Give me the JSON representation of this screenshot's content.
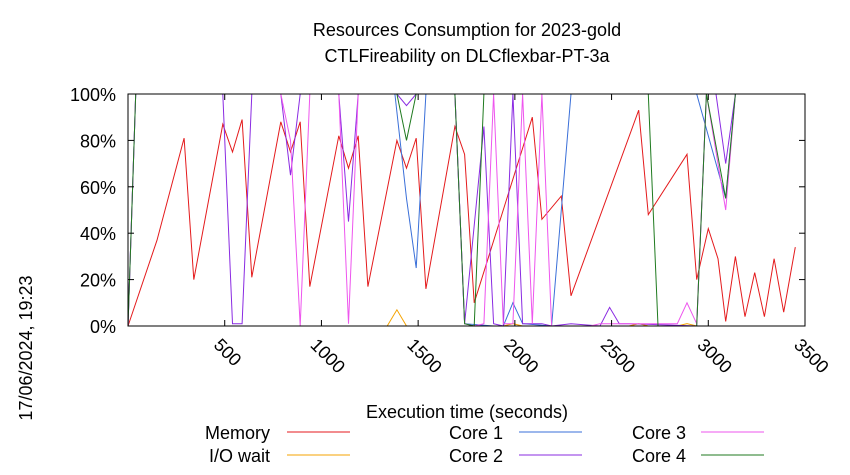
{
  "timestamp": "17/06/2024, 19:23",
  "chart_data": {
    "type": "line",
    "title": "Resources Consumption for 2023-gold",
    "subtitle": "CTLFireability on DLCflexbar-PT-3a",
    "xlabel": "Execution time (seconds)",
    "ylabel": "",
    "xlim": [
      0,
      3500
    ],
    "ylim": [
      0,
      100
    ],
    "grid": false,
    "legend_position": "bottom",
    "x_ticks": [
      {
        "value": 500,
        "label": "500"
      },
      {
        "value": 1000,
        "label": "1000"
      },
      {
        "value": 1500,
        "label": "1500"
      },
      {
        "value": 2000,
        "label": "2000"
      },
      {
        "value": 2500,
        "label": "2500"
      },
      {
        "value": 3000,
        "label": "3000"
      },
      {
        "value": 3500,
        "label": "3500"
      }
    ],
    "y_ticks": [
      {
        "value": 0,
        "label": "0%"
      },
      {
        "value": 20,
        "label": "20%"
      },
      {
        "value": 40,
        "label": "40%"
      },
      {
        "value": 60,
        "label": "60%"
      },
      {
        "value": 80,
        "label": "80%"
      },
      {
        "value": 100,
        "label": "100%"
      }
    ],
    "series": [
      {
        "name": "Memory",
        "color": "#e41a1c",
        "points": [
          [
            0,
            0
          ],
          [
            150,
            37
          ],
          [
            290,
            81
          ],
          [
            340,
            20
          ],
          [
            490,
            87
          ],
          [
            540,
            75
          ],
          [
            590,
            89
          ],
          [
            640,
            21
          ],
          [
            790,
            88
          ],
          [
            840,
            75
          ],
          [
            890,
            88
          ],
          [
            940,
            17
          ],
          [
            1090,
            82
          ],
          [
            1140,
            68
          ],
          [
            1190,
            82
          ],
          [
            1240,
            17
          ],
          [
            1390,
            80
          ],
          [
            1440,
            68
          ],
          [
            1490,
            81
          ],
          [
            1540,
            16
          ],
          [
            1690,
            86
          ],
          [
            1740,
            74
          ],
          [
            1790,
            10
          ],
          [
            2090,
            90
          ],
          [
            2140,
            46
          ],
          [
            2240,
            56
          ],
          [
            2290,
            13
          ],
          [
            2640,
            93
          ],
          [
            2690,
            48
          ],
          [
            2890,
            74
          ],
          [
            2940,
            20
          ],
          [
            3000,
            42
          ],
          [
            3050,
            29
          ],
          [
            3090,
            2
          ],
          [
            3140,
            30
          ],
          [
            3190,
            4
          ],
          [
            3240,
            23
          ],
          [
            3290,
            4
          ],
          [
            3340,
            29
          ],
          [
            3390,
            6
          ],
          [
            3450,
            34
          ]
        ]
      },
      {
        "name": "I/O wait",
        "color": "#f5a300",
        "points": [
          [
            0,
            0
          ],
          [
            1340,
            0
          ],
          [
            1390,
            7
          ],
          [
            1440,
            0
          ],
          [
            1940,
            0
          ],
          [
            1990,
            1
          ],
          [
            2040,
            0
          ],
          [
            2590,
            0
          ],
          [
            2640,
            1
          ],
          [
            2690,
            0
          ],
          [
            2840,
            0
          ],
          [
            2890,
            1
          ],
          [
            2940,
            0
          ],
          [
            3450,
            0
          ]
        ]
      },
      {
        "name": "Core 1",
        "color": "#3a6fd8",
        "points": [
          [
            0,
            0
          ],
          [
            40,
            100
          ],
          [
            1380,
            100
          ],
          [
            1440,
            55
          ],
          [
            1490,
            25
          ],
          [
            1540,
            100
          ],
          [
            1690,
            100
          ],
          [
            1740,
            1
          ],
          [
            1890,
            0
          ],
          [
            1940,
            0
          ],
          [
            1990,
            10
          ],
          [
            2040,
            1
          ],
          [
            2190,
            0
          ],
          [
            2290,
            100
          ],
          [
            2940,
            100
          ],
          [
            3090,
            55
          ],
          [
            3140,
            100
          ],
          [
            3450,
            100
          ]
        ]
      },
      {
        "name": "Core 2",
        "color": "#8a2be2",
        "points": [
          [
            0,
            0
          ],
          [
            40,
            100
          ],
          [
            490,
            100
          ],
          [
            540,
            1
          ],
          [
            590,
            1
          ],
          [
            640,
            100
          ],
          [
            790,
            100
          ],
          [
            840,
            65
          ],
          [
            890,
            100
          ],
          [
            1090,
            100
          ],
          [
            1140,
            45
          ],
          [
            1190,
            100
          ],
          [
            1390,
            100
          ],
          [
            1440,
            95
          ],
          [
            1490,
            100
          ],
          [
            1690,
            100
          ],
          [
            1740,
            1
          ],
          [
            1840,
            86
          ],
          [
            1890,
            1
          ],
          [
            1940,
            0
          ],
          [
            1990,
            100
          ],
          [
            2040,
            1
          ],
          [
            2140,
            1
          ],
          [
            2190,
            0
          ],
          [
            2290,
            1
          ],
          [
            2440,
            0
          ],
          [
            2490,
            8
          ],
          [
            2540,
            1
          ],
          [
            2590,
            1
          ],
          [
            2940,
            0
          ],
          [
            2990,
            100
          ],
          [
            3040,
            100
          ],
          [
            3090,
            70
          ],
          [
            3140,
            100
          ],
          [
            3450,
            100
          ]
        ]
      },
      {
        "name": "Core 3",
        "color": "#ee55ee",
        "points": [
          [
            0,
            0
          ],
          [
            40,
            100
          ],
          [
            490,
            100
          ],
          [
            540,
            100
          ],
          [
            590,
            100
          ],
          [
            640,
            100
          ],
          [
            790,
            100
          ],
          [
            840,
            80
          ],
          [
            890,
            0
          ],
          [
            940,
            100
          ],
          [
            1090,
            100
          ],
          [
            1140,
            1
          ],
          [
            1190,
            100
          ],
          [
            1690,
            100
          ],
          [
            1740,
            1
          ],
          [
            1790,
            0
          ],
          [
            1840,
            1
          ],
          [
            1890,
            100
          ],
          [
            1940,
            1
          ],
          [
            1990,
            1
          ],
          [
            2040,
            100
          ],
          [
            2090,
            1
          ],
          [
            2140,
            100
          ],
          [
            2190,
            0
          ],
          [
            2390,
            0
          ],
          [
            2440,
            1
          ],
          [
            2840,
            1
          ],
          [
            2890,
            10
          ],
          [
            2940,
            1
          ],
          [
            2990,
            100
          ],
          [
            3090,
            50
          ],
          [
            3140,
            100
          ],
          [
            3450,
            100
          ]
        ]
      },
      {
        "name": "Core 4",
        "color": "#1f7a1f",
        "points": [
          [
            0,
            0
          ],
          [
            40,
            100
          ],
          [
            1390,
            100
          ],
          [
            1440,
            80
          ],
          [
            1490,
            100
          ],
          [
            1690,
            100
          ],
          [
            1740,
            1
          ],
          [
            1790,
            0
          ],
          [
            1840,
            100
          ],
          [
            2690,
            100
          ],
          [
            2740,
            0
          ],
          [
            2940,
            0
          ],
          [
            2990,
            100
          ],
          [
            3090,
            55
          ],
          [
            3140,
            100
          ],
          [
            3450,
            100
          ]
        ]
      }
    ]
  }
}
